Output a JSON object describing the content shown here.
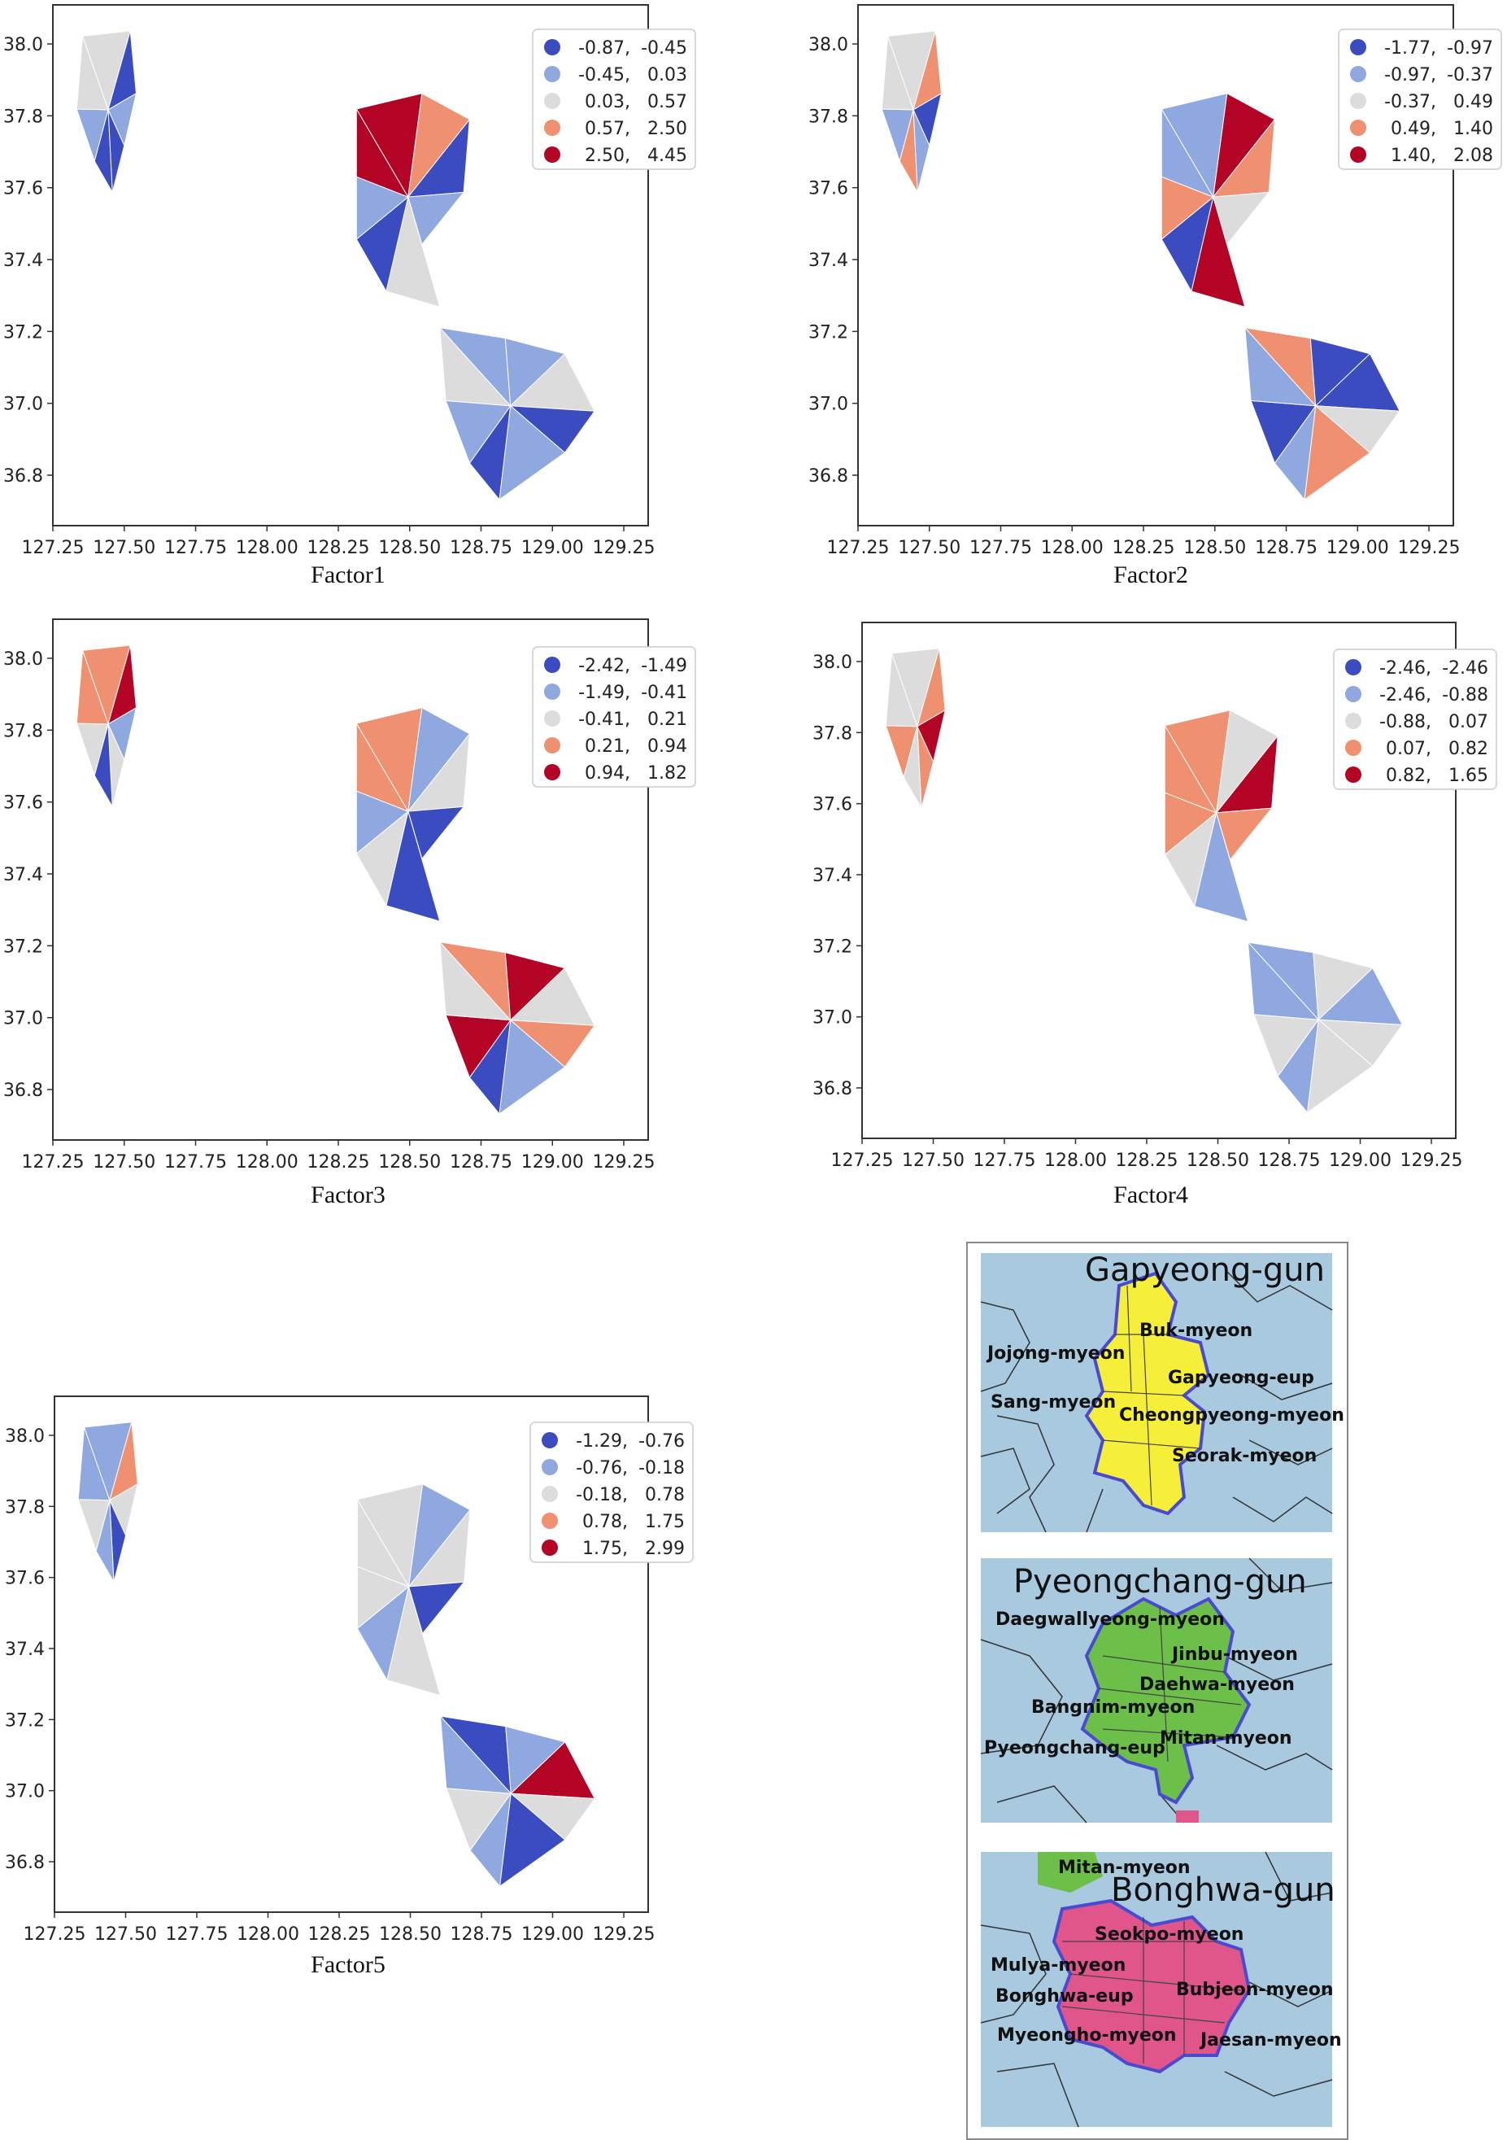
{
  "panels": [
    {
      "caption": "Factor1",
      "legend": [
        [
          "-0.87,",
          "-0.45"
        ],
        [
          "-0.45,",
          "0.03"
        ],
        [
          "0.03,",
          "0.57"
        ],
        [
          "0.57,",
          "2.50"
        ],
        [
          "2.50,",
          "4.45"
        ]
      ]
    },
    {
      "caption": "Factor2",
      "legend": [
        [
          "-1.77,",
          "-0.97"
        ],
        [
          "-0.97,",
          "-0.37"
        ],
        [
          "-0.37,",
          "0.49"
        ],
        [
          "0.49,",
          "1.40"
        ],
        [
          "1.40,",
          "2.08"
        ]
      ]
    },
    {
      "caption": "Factor3",
      "legend": [
        [
          "-2.42,",
          "-1.49"
        ],
        [
          "-1.49,",
          "-0.41"
        ],
        [
          "-0.41,",
          "0.21"
        ],
        [
          "0.21,",
          "0.94"
        ],
        [
          "0.94,",
          "1.82"
        ]
      ]
    },
    {
      "caption": "Factor4",
      "legend": [
        [
          "-2.46,",
          "-2.46"
        ],
        [
          "-2.46,",
          "-0.88"
        ],
        [
          "-0.88,",
          "0.07"
        ],
        [
          "0.07,",
          "0.82"
        ],
        [
          "0.82,",
          "1.65"
        ]
      ]
    },
    {
      "caption": "Factor5",
      "legend": [
        [
          "-1.29,",
          "-0.76"
        ],
        [
          "-0.76,",
          "-0.18"
        ],
        [
          "-0.18,",
          "0.78"
        ],
        [
          "0.78,",
          "1.75"
        ],
        [
          "1.75,",
          "2.99"
        ]
      ]
    }
  ],
  "axes": {
    "x_ticks": [
      "127.25",
      "127.50",
      "127.75",
      "128.00",
      "128.25",
      "128.50",
      "128.75",
      "129.00",
      "129.25"
    ],
    "y_ticks": [
      "38.0",
      "37.8",
      "37.6",
      "37.4",
      "37.2",
      "37.0",
      "36.8"
    ]
  },
  "colors": [
    "#3b4cc0",
    "#8fa8e0",
    "#dcdcdc",
    "#ef9070",
    "#b40426"
  ],
  "reference": {
    "gapyeong": {
      "title": "Gapyeong-gun",
      "labels": [
        "Buk-myeon",
        "Jojong-myeon",
        "Gapyeong-eup",
        "Sang-myeon",
        "Cheongpyeong-myeon",
        "Seorak-myeon"
      ],
      "color": "#f5ef3a"
    },
    "pyeongchang": {
      "title": "Pyeongchang-gun",
      "labels": [
        "Daegwallyeong-myeon",
        "Jinbu-myeon",
        "Daehwa-myeon",
        "Bangnim-myeon",
        "Mitan-myeon",
        "Pyeongchang-eup"
      ],
      "color": "#6cc04a"
    },
    "bonghwa": {
      "title": "Bonghwa-gun",
      "labels": [
        "Mitan-myeon",
        "Seokpo-myeon",
        "Mulya-myeon",
        "Bonghwa-eup",
        "Bubjeon-myeon",
        "Myeongho-myeon",
        "Jaesan-myeon"
      ],
      "color": "#e0558a"
    }
  }
}
